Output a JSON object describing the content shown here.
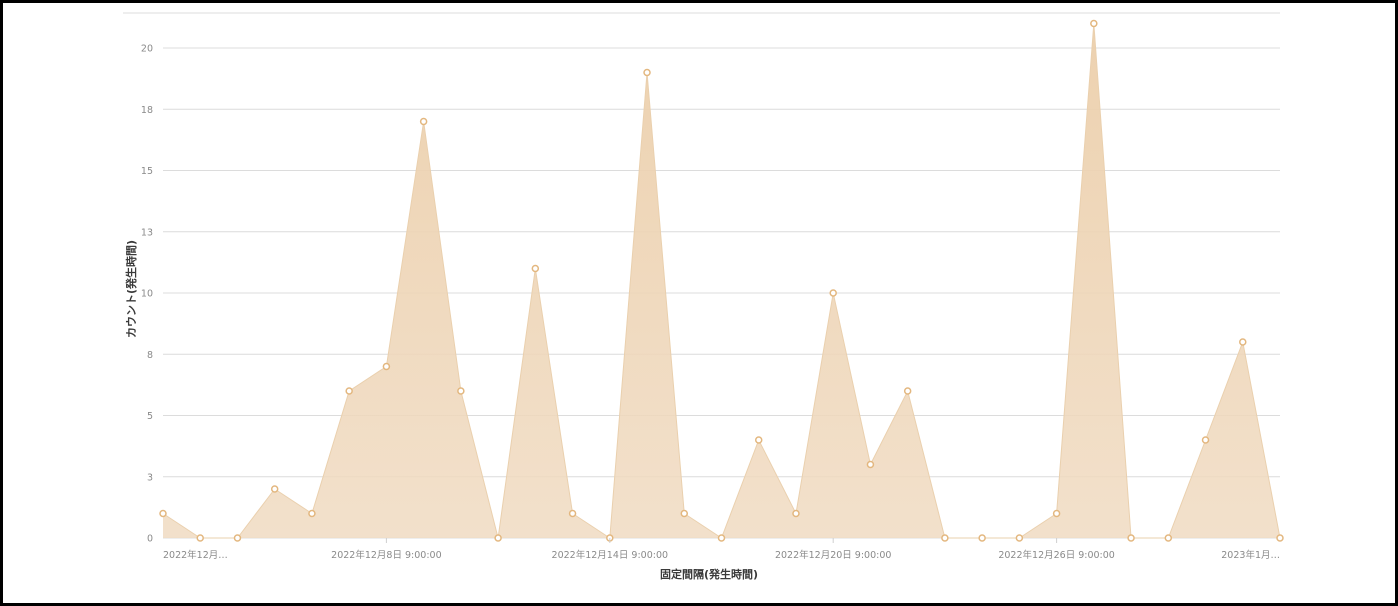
{
  "chart_data": {
    "type": "area",
    "xlabel": "固定間隔(発生時間)",
    "ylabel": "カウント(発生時間)",
    "ylim": [
      0,
      21
    ],
    "y_ticks": [
      0,
      3,
      5,
      8,
      10,
      13,
      15,
      18,
      20
    ],
    "y_tick_values": [
      0,
      2.5,
      5,
      7.5,
      10,
      12.5,
      15,
      17.5,
      20
    ],
    "x_tick_labels": [
      "2022年12月…",
      "2022年12月8日 9:00:00",
      "2022年12月14日 9:00:00",
      "2022年12月20日 9:00:00",
      "2022年12月26日 9:00:00",
      "2023年1月…"
    ],
    "x_tick_indices": [
      0,
      6,
      12,
      18,
      24,
      30
    ],
    "grid": true,
    "series": [
      {
        "values": [
          1,
          0,
          0,
          2,
          1,
          6,
          7,
          17,
          6,
          0,
          11,
          1,
          0,
          19,
          1,
          0,
          4,
          1,
          10,
          3,
          6,
          0,
          0,
          0,
          1,
          21,
          0,
          0,
          4,
          8,
          0
        ]
      }
    ]
  },
  "colors": {
    "area_fill": "#f0dbc2",
    "area_line": "#ead0ae",
    "marker_stroke": "#e3b77f",
    "grid": "#dcdcdc",
    "tick_text": "#8a8a8a",
    "title_text": "#3a3a3a"
  }
}
